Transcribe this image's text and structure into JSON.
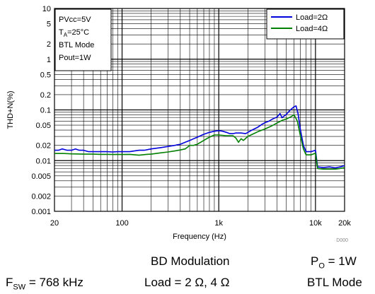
{
  "chart_data": {
    "type": "line",
    "xlabel": "Frequency (Hz)",
    "ylabel": "THD+N(%)",
    "x_scale": "log",
    "y_scale": "log",
    "xlim": [
      20,
      20000
    ],
    "ylim": [
      0.001,
      10
    ],
    "x_ticks": [
      {
        "value": 20,
        "label": "20"
      },
      {
        "value": 100,
        "label": "100"
      },
      {
        "value": 1000,
        "label": "1k"
      },
      {
        "value": 10000,
        "label": "10k"
      },
      {
        "value": 20000,
        "label": "20k"
      }
    ],
    "y_ticks": [
      {
        "value": 10,
        "label": "10"
      },
      {
        "value": 5,
        "label": "5"
      },
      {
        "value": 2,
        "label": "2"
      },
      {
        "value": 1,
        "label": "1"
      },
      {
        "value": 0.5,
        "label": "0.5"
      },
      {
        "value": 0.2,
        "label": "0.2"
      },
      {
        "value": 0.1,
        "label": "0.1"
      },
      {
        "value": 0.05,
        "label": "0.05"
      },
      {
        "value": 0.02,
        "label": "0.02"
      },
      {
        "value": 0.01,
        "label": "0.01"
      },
      {
        "value": 0.005,
        "label": "0.005"
      },
      {
        "value": 0.002,
        "label": "0.002"
      },
      {
        "value": 0.001,
        "label": "0.001"
      }
    ],
    "grid": true,
    "legend_position": "top-right",
    "conditions": {
      "line1": "PVcc=5V",
      "line2_main": "T",
      "line2_sub": "A",
      "line2_rest": "=25°C",
      "line3": "BTL Mode",
      "line4": "Pout=1W"
    },
    "figure_id": "D000",
    "series": [
      {
        "name": "Load=2Ω",
        "color": "#0000dd",
        "points": [
          [
            20,
            0.016
          ],
          [
            22,
            0.016
          ],
          [
            24,
            0.017
          ],
          [
            27,
            0.016
          ],
          [
            30,
            0.016
          ],
          [
            33,
            0.017
          ],
          [
            36,
            0.016
          ],
          [
            40,
            0.016
          ],
          [
            45,
            0.015
          ],
          [
            50,
            0.015
          ],
          [
            55,
            0.015
          ],
          [
            60,
            0.015
          ],
          [
            70,
            0.015
          ],
          [
            80,
            0.0148
          ],
          [
            90,
            0.015
          ],
          [
            100,
            0.015
          ],
          [
            120,
            0.015
          ],
          [
            150,
            0.016
          ],
          [
            170,
            0.016
          ],
          [
            200,
            0.017
          ],
          [
            250,
            0.018
          ],
          [
            300,
            0.019
          ],
          [
            350,
            0.02
          ],
          [
            400,
            0.021
          ],
          [
            450,
            0.023
          ],
          [
            500,
            0.025
          ],
          [
            550,
            0.027
          ],
          [
            600,
            0.029
          ],
          [
            700,
            0.033
          ],
          [
            800,
            0.036
          ],
          [
            900,
            0.038
          ],
          [
            1000,
            0.039
          ],
          [
            1100,
            0.038
          ],
          [
            1200,
            0.036
          ],
          [
            1300,
            0.034
          ],
          [
            1400,
            0.034
          ],
          [
            1500,
            0.035
          ],
          [
            1700,
            0.035
          ],
          [
            1900,
            0.034
          ],
          [
            2000,
            0.036
          ],
          [
            2200,
            0.04
          ],
          [
            2500,
            0.045
          ],
          [
            2800,
            0.052
          ],
          [
            3000,
            0.056
          ],
          [
            3300,
            0.06
          ],
          [
            3600,
            0.066
          ],
          [
            4000,
            0.072
          ],
          [
            4300,
            0.085
          ],
          [
            4500,
            0.07
          ],
          [
            5000,
            0.082
          ],
          [
            5500,
            0.1
          ],
          [
            6000,
            0.115
          ],
          [
            6300,
            0.12
          ],
          [
            6600,
            0.085
          ],
          [
            7000,
            0.04
          ],
          [
            7500,
            0.02
          ],
          [
            8000,
            0.015
          ],
          [
            9000,
            0.015
          ],
          [
            10000,
            0.016
          ],
          [
            10500,
            0.0075
          ],
          [
            12000,
            0.0073
          ],
          [
            14000,
            0.0075
          ],
          [
            16000,
            0.0072
          ],
          [
            18000,
            0.0075
          ],
          [
            20000,
            0.008
          ]
        ]
      },
      {
        "name": "Load=4Ω",
        "color": "#008000",
        "points": [
          [
            20,
            0.0138
          ],
          [
            25,
            0.0138
          ],
          [
            30,
            0.0136
          ],
          [
            40,
            0.0134
          ],
          [
            50,
            0.0134
          ],
          [
            60,
            0.0133
          ],
          [
            70,
            0.0133
          ],
          [
            80,
            0.0132
          ],
          [
            90,
            0.0133
          ],
          [
            100,
            0.0132
          ],
          [
            120,
            0.0133
          ],
          [
            150,
            0.0128
          ],
          [
            180,
            0.0133
          ],
          [
            200,
            0.0134
          ],
          [
            250,
            0.0142
          ],
          [
            300,
            0.0148
          ],
          [
            350,
            0.0155
          ],
          [
            400,
            0.0162
          ],
          [
            450,
            0.017
          ],
          [
            500,
            0.02
          ],
          [
            550,
            0.02
          ],
          [
            600,
            0.021
          ],
          [
            700,
            0.025
          ],
          [
            800,
            0.029
          ],
          [
            900,
            0.032
          ],
          [
            1000,
            0.032
          ],
          [
            1200,
            0.031
          ],
          [
            1400,
            0.031
          ],
          [
            1500,
            0.028
          ],
          [
            1600,
            0.023
          ],
          [
            1700,
            0.027
          ],
          [
            1800,
            0.025
          ],
          [
            2000,
            0.03
          ],
          [
            2300,
            0.034
          ],
          [
            2600,
            0.038
          ],
          [
            3000,
            0.042
          ],
          [
            3500,
            0.048
          ],
          [
            4000,
            0.055
          ],
          [
            4500,
            0.062
          ],
          [
            5000,
            0.066
          ],
          [
            5500,
            0.072
          ],
          [
            6000,
            0.08
          ],
          [
            6500,
            0.06
          ],
          [
            7000,
            0.03
          ],
          [
            7500,
            0.017
          ],
          [
            8000,
            0.013
          ],
          [
            9000,
            0.013
          ],
          [
            10000,
            0.014
          ],
          [
            10500,
            0.007
          ],
          [
            12000,
            0.0068
          ],
          [
            14000,
            0.0068
          ],
          [
            16000,
            0.0068
          ],
          [
            18000,
            0.007
          ],
          [
            20000,
            0.0073
          ]
        ]
      }
    ]
  },
  "captions": {
    "modulation": "BD Modulation",
    "po_main": "P",
    "po_sub": "O",
    "po_rest": " = 1W",
    "fsw_main": "F",
    "fsw_sub": "SW",
    "fsw_rest": " = 768 kHz",
    "load": "Load = 2 Ω, 4 Ω",
    "mode": "BTL Mode"
  }
}
